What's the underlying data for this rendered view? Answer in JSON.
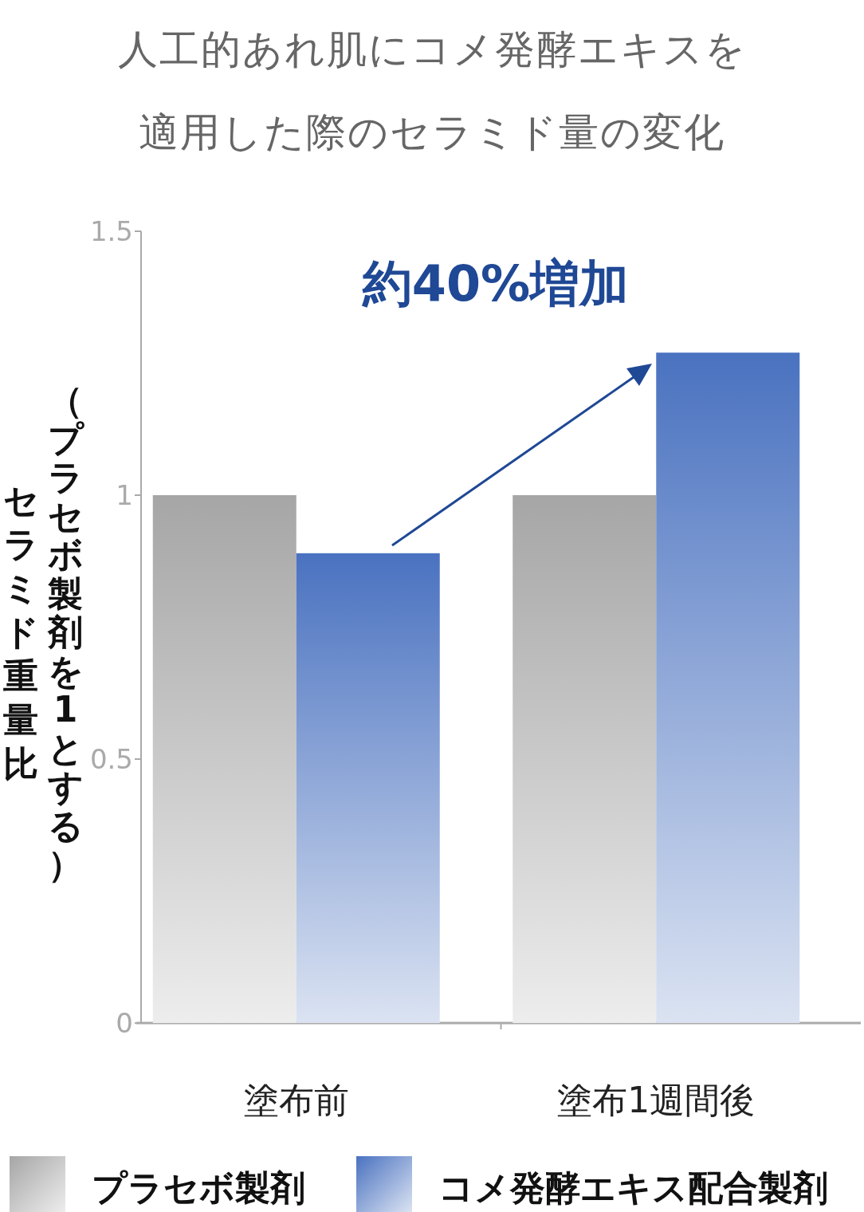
{
  "chart_data": {
    "type": "bar",
    "title": "人工的あれ肌にコメ発酵エキスを適用した際のセラミド量の変化",
    "ylabel": "セラミド重量比（プラセボ製剤を1とする）",
    "categories": [
      "塗布前",
      "塗布1週間後"
    ],
    "series": [
      {
        "name": "プラセボ製剤",
        "color": "#a6a6a6",
        "values": [
          1,
          1
        ]
      },
      {
        "name": "コメ発酵エキス配合製剤",
        "color": "#4a72c0",
        "values": [
          0.89,
          1.27
        ]
      }
    ],
    "ylim": [
      0,
      1.5
    ],
    "yticks": [
      0,
      0.5,
      1,
      1.5
    ],
    "legend": "bottom",
    "grid": false,
    "annotations": [
      "約40%増加"
    ]
  }
}
